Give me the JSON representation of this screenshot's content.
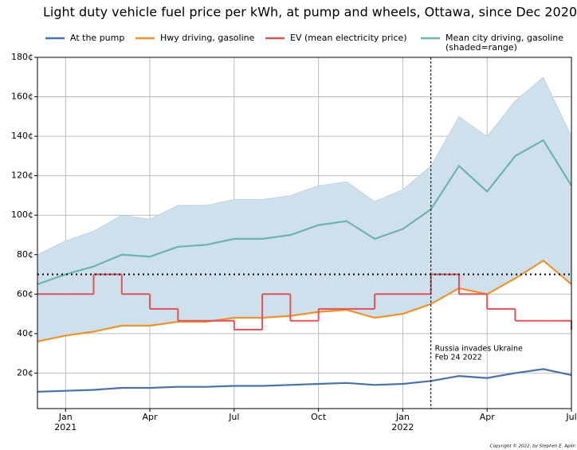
{
  "chart_data": {
    "type": "line",
    "title": "Light duty vehicle fuel price per kWh, at pump and wheels, Ottawa, since Dec 2020",
    "x": [
      "2020-12",
      "2021-01",
      "2021-02",
      "2021-03",
      "2021-04",
      "2021-05",
      "2021-06",
      "2021-07",
      "2021-08",
      "2021-09",
      "2021-10",
      "2021-11",
      "2021-12",
      "2022-01",
      "2022-02",
      "2022-03",
      "2022-04",
      "2022-05",
      "2022-06",
      "2022-07"
    ],
    "xlim": [
      "2020-12",
      "2022-07"
    ],
    "xticks": [
      {
        "value": "2021-01",
        "label": "Jan"
      },
      {
        "value": "2021-04",
        "label": "Apr"
      },
      {
        "value": "2021-07",
        "label": "Jul"
      },
      {
        "value": "2021-10",
        "label": "Oct"
      },
      {
        "value": "2022-01",
        "label": "Jan"
      },
      {
        "value": "2022-04",
        "label": "Apr"
      },
      {
        "value": "2022-07",
        "label": "Jul"
      }
    ],
    "xtick_years": [
      {
        "value": "2021-01",
        "label": "2021"
      },
      {
        "value": "2022-01",
        "label": "2022"
      }
    ],
    "ylim": [
      2,
      180
    ],
    "yticks": [
      {
        "value": 20,
        "label": "20¢"
      },
      {
        "value": 40,
        "label": "40¢"
      },
      {
        "value": 60,
        "label": "60¢"
      },
      {
        "value": 80,
        "label": "80¢"
      },
      {
        "value": 100,
        "label": "100¢"
      },
      {
        "value": 120,
        "label": "120¢"
      },
      {
        "value": 140,
        "label": "140¢"
      },
      {
        "value": 160,
        "label": "160¢"
      },
      {
        "value": 180,
        "label": "180¢"
      }
    ],
    "grid": true,
    "series": [
      {
        "name": "At the pump",
        "color": "#4a72a6",
        "values": [
          10.5,
          11,
          11.5,
          12.5,
          12.5,
          13,
          13,
          13.5,
          13.5,
          14,
          14.5,
          15,
          14,
          14.5,
          16,
          18.5,
          17.5,
          20,
          22,
          19
        ]
      },
      {
        "name": "Hwy driving, gasoline",
        "color": "#f0922d",
        "values": [
          36,
          39,
          41,
          44,
          44,
          46,
          46,
          48,
          48,
          49,
          51,
          52,
          48,
          50,
          55,
          63,
          60,
          68,
          77,
          65
        ]
      },
      {
        "name": "EV (mean electricity price)",
        "color": "#e0525a",
        "step": true,
        "values": [
          60,
          60,
          70,
          60,
          52.5,
          46.5,
          46.5,
          42,
          60,
          46.5,
          52.5,
          52.5,
          60,
          60,
          70,
          60,
          52.5,
          46.5,
          46.5,
          42
        ]
      },
      {
        "name": "Mean city driving, gasoline",
        "range_note": "(shaded=range)",
        "color": "#6fb3ad",
        "range_color": "#cde0ec",
        "values": [
          65,
          70,
          74,
          80,
          79,
          84,
          85,
          88,
          88,
          90,
          95,
          97,
          88,
          93,
          103,
          125,
          112,
          130,
          138,
          115
        ],
        "range_low": [
          36,
          39,
          41,
          44,
          44,
          46,
          46,
          48,
          48,
          49,
          51,
          52,
          48,
          50,
          55,
          63,
          60,
          68,
          77,
          65
        ],
        "range_high": [
          80,
          87,
          92,
          100,
          98,
          105,
          105,
          108,
          108,
          110,
          115,
          117,
          107,
          113,
          125,
          150,
          140,
          158,
          170,
          140
        ]
      }
    ],
    "hline": 70,
    "event": {
      "x": "2022-02",
      "label_lines": [
        "Russia invades Ukraine",
        "Feb 24 2022"
      ]
    },
    "copyright": "Copyright  © 2022, by Stephen E. Aplin"
  }
}
